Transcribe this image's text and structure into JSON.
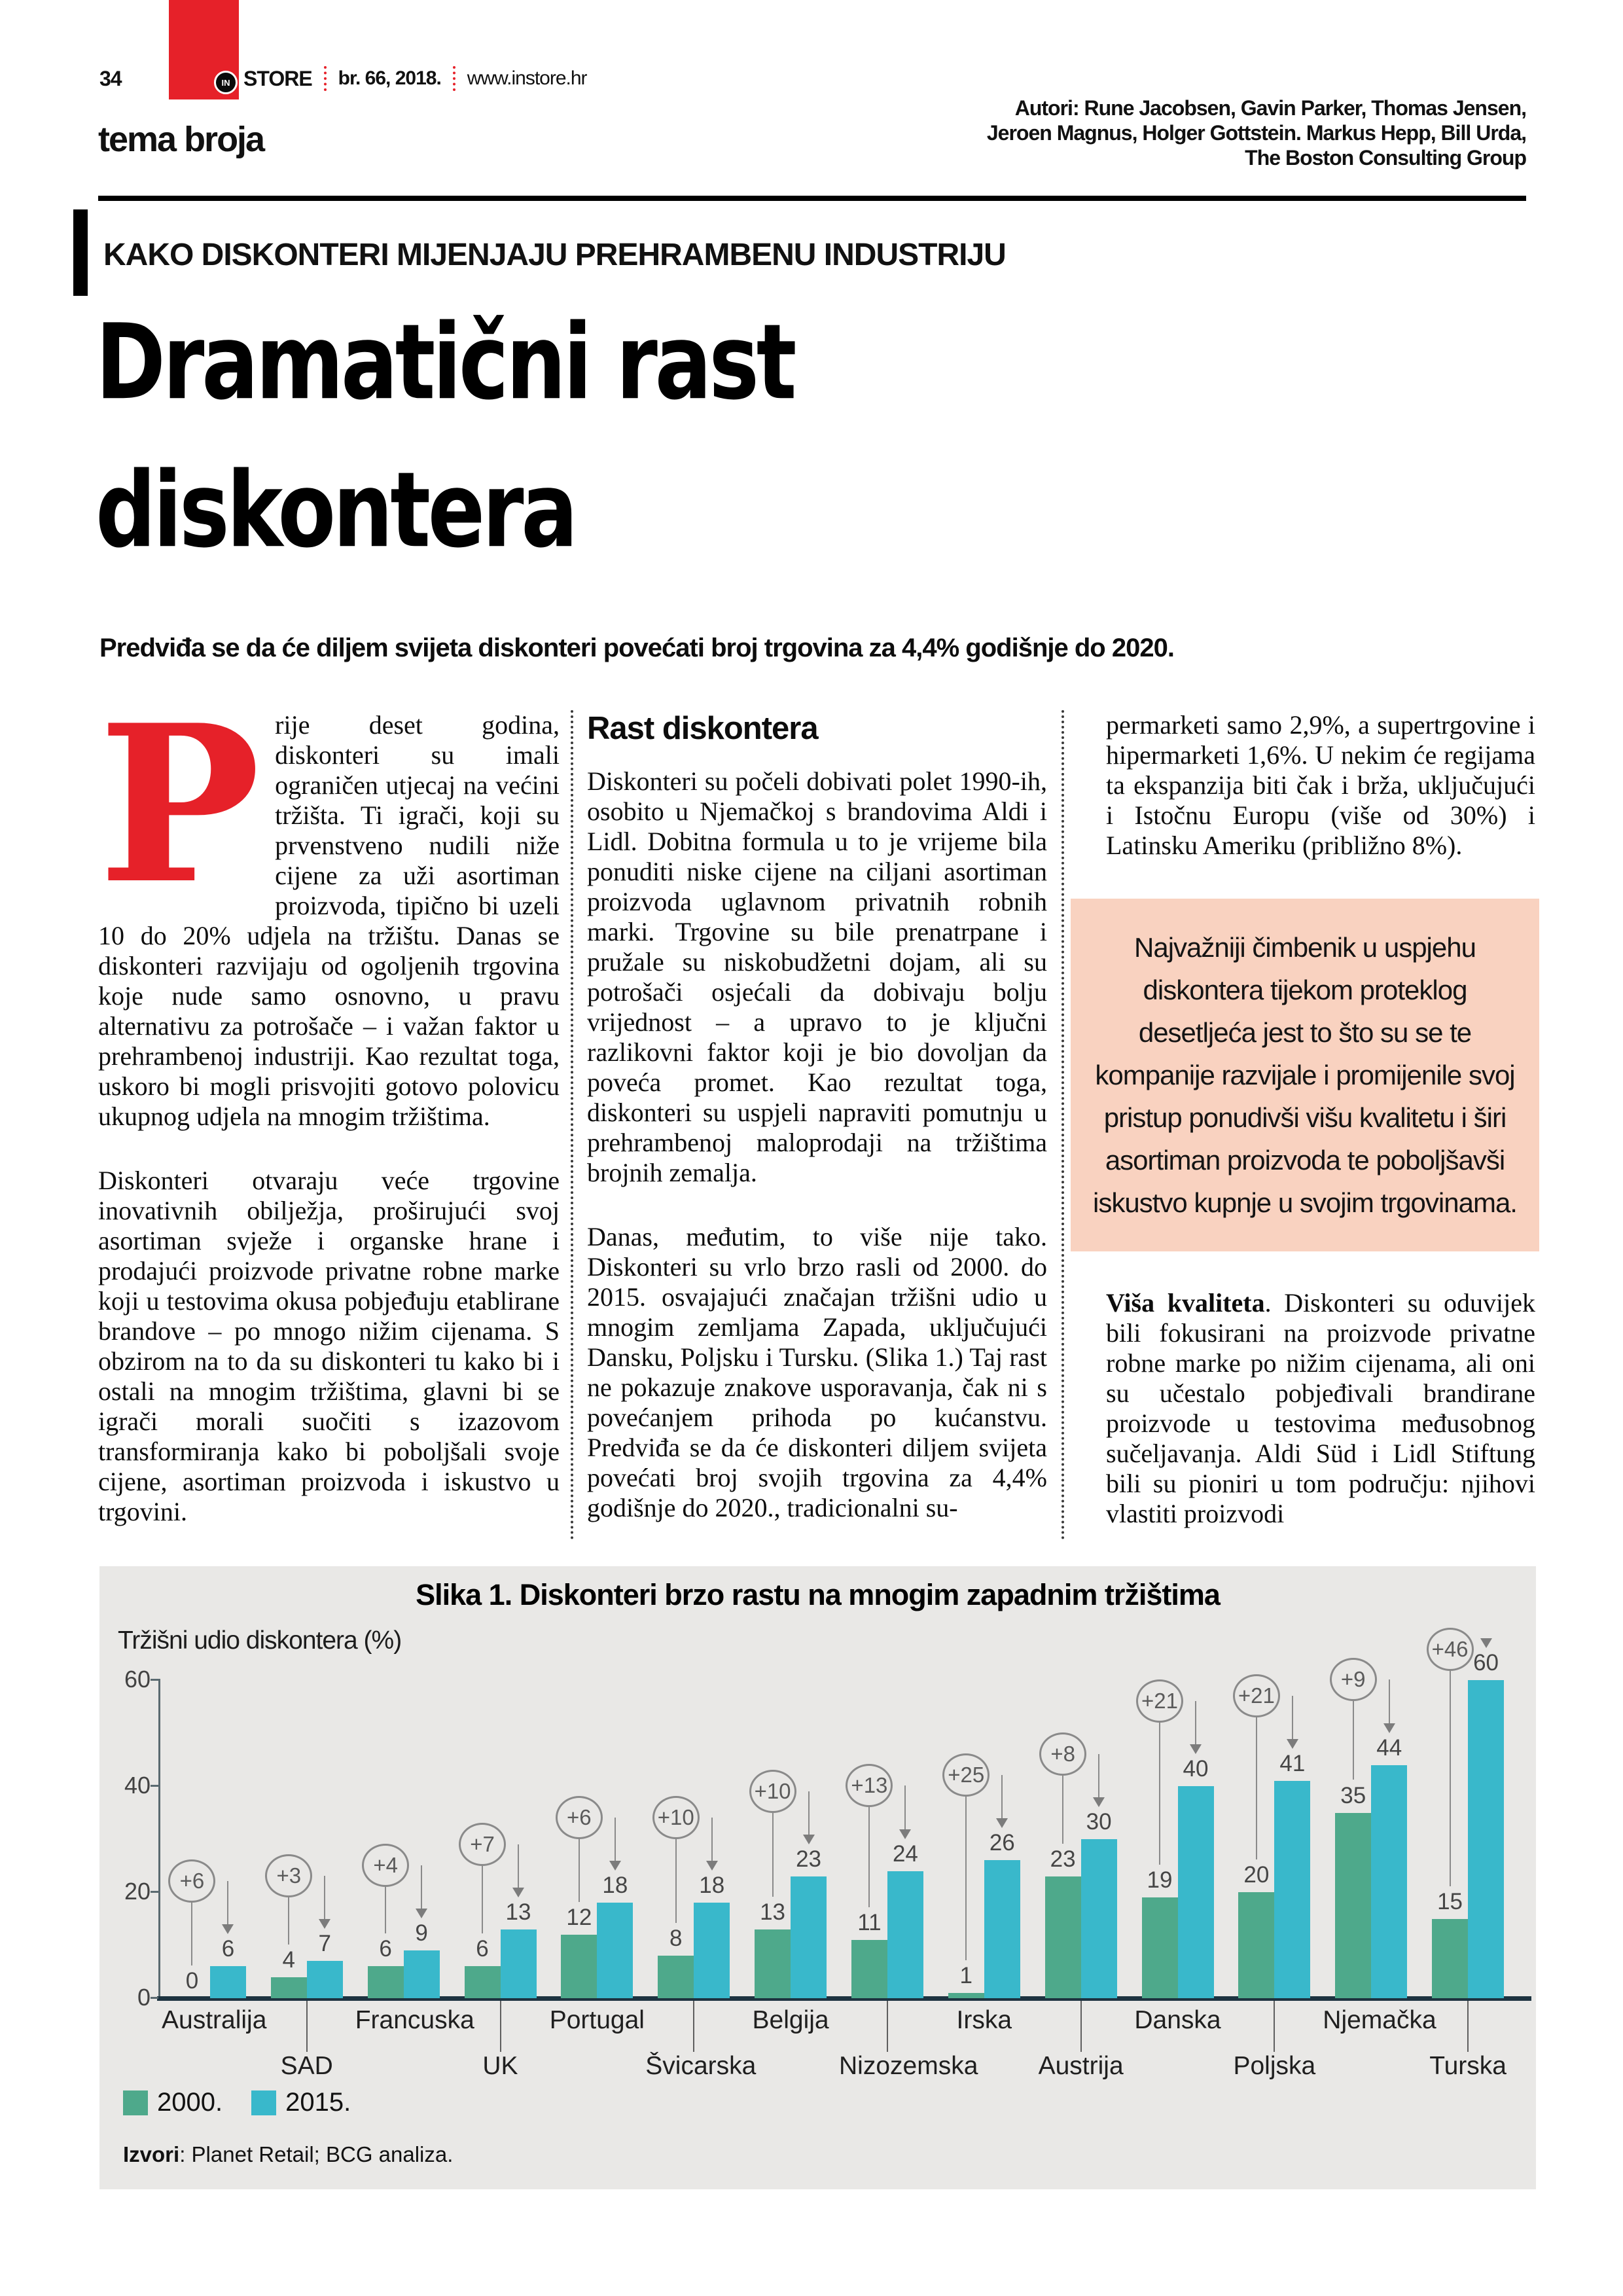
{
  "header": {
    "page_number": "34",
    "logo_in": "IN",
    "logo_store": "STORE",
    "issue": "br. 66, 2018.",
    "website": "www.instore.hr",
    "section": "tema broja",
    "authors_line1": "Autori: Rune Jacobsen, Gavin Parker, Thomas Jensen,",
    "authors_line2": "Jeroen Magnus, Holger Gottstein. Markus Hepp, Bill Urda,",
    "authors_line3": "The Boston Consulting Group"
  },
  "article": {
    "kicker": "KAKO DISKONTERI MIJENJAJU PREHRAMBENU INDUSTRIJU",
    "title_line1": "Dramatični rast",
    "title_line2": "diskontera",
    "lead": "Predviđa se da će diljem svijeta diskonteri povećati broj trgovina za 4,4% godišnje do 2020.",
    "col1": {
      "dropcap": "P",
      "p1": "rije deset godina, diskonteri su imali ograničen utjecaj na većini tržišta. Ti igrači, koji su prvenstveno nudili niže cijene za uži asortiman proizvoda, tipično bi uzeli 10 do 20% udjela na tržištu. Danas se diskonteri razvijaju od ogoljenih trgovina koje nude samo osnovno, u pravu alternativu za potrošače – i važan faktor u prehrambenoj industriji. Kao rezultat toga, uskoro bi mogli prisvojiti gotovo polovicu ukupnog udjela na mnogim tržištima.",
      "p2": "Diskonteri otvaraju veće trgovine inovativnih obilježja, proširujući svoj asortiman svježe i organske hrane i prodajući proizvode privatne robne marke koji u testovima okusa pobjeđuju etablirane brandove – po mnogo nižim cijenama. S obzirom na to da su diskonteri tu kako bi i ostali na mnogim tržištima, glavni bi se igrači morali suočiti s izazovom transformiranja kako bi poboljšali svoje cijene, asortiman proizvoda i iskustvo u trgovini."
    },
    "col2": {
      "heading": "Rast diskontera",
      "p1": "Diskonteri su počeli dobivati polet 1990-ih, osobito u Njemačkoj s brandovima Aldi i Lidl. Dobitna formula u to je vrijeme bila ponuditi niske cijene na ciljani asortiman proizvoda uglavnom privatnih robnih marki. Trgovine su bile prenatrpane i pružale su niskobudžetni dojam, ali su potrošači osjećali da dobivaju bolju vrijednost – a upravo to je ključni razlikovni faktor koji je bio dovoljan da poveća promet. Kao rezultat toga, diskonteri su uspjeli napraviti pomutnju u prehrambenoj maloprodaji na tržištima brojnih zemalja.",
      "p2": "Danas, međutim, to više nije tako. Diskonteri su vrlo brzo rasli od 2000. do 2015. osvajajući značajan tržišni udio u mnogim zemljama Zapada, uključujući Dansku, Poljsku i Tursku. (Slika 1.) Taj rast ne pokazuje znakove usporavanja, čak ni s povećanjem prihoda po kućanstvu. Predviđa se da će diskonteri diljem svijeta povećati broj svojih trgovina za 4,4% godišnje do 2020., tradicionalni su-"
    },
    "col3": {
      "p1": "permarketi samo 2,9%, a supertrgovine i hipermarketi 1,6%. U nekim će regijama ta ekspanzija biti čak i brža, uključujući i Istočnu Europu (više od 30%) i Latinsku Ameriku (približno 8%).",
      "quote": "Najvažniji čimbenik u uspjehu diskontera tijekom proteklog desetljeća jest to što su se te kompanije razvijale i promijenile svoj pristup ponudivši višu kvalitetu i širi asortiman proizvoda te poboljšavši iskustvo kupnje u svojim trgovinama.",
      "p2_lead": "Viša kvaliteta",
      "p2_rest": ". Diskonteri su oduvijek bili fokusirani na proizvode privatne robne marke po nižim cijenama, ali oni su učestalo pobjeđivali brandirane proizvode u testovima međusobnog sučeljavanja. Aldi Süd i Lidl Stiftung bili su pioniri u tom području: njihovi vlastiti proizvodi"
    }
  },
  "colors": {
    "accent_red": "#e62129",
    "quote_box_bg": "#f9d2c0",
    "chart_panel_bg": "#e9e8e6",
    "bar_2000": "#4ea98b",
    "bar_2015": "#39b8cb"
  },
  "chart_data": {
    "type": "bar",
    "title": "Slika 1. Diskonteri brzo rastu na mnogim zapadnim tržištima",
    "ylabel": "Tržišni udio diskontera (%)",
    "xlabel": "",
    "ylim": [
      0,
      60
    ],
    "yticks": [
      0,
      20,
      40,
      60
    ],
    "grid": false,
    "legend_position": "bottom-left",
    "categories": [
      "Australija",
      "SAD",
      "Francuska",
      "UK",
      "Portugal",
      "Švicarska",
      "Belgija",
      "Nizozemska",
      "Irska",
      "Austrija",
      "Danska",
      "Poljska",
      "Njemačka",
      "Turska"
    ],
    "series": [
      {
        "name": "2000.",
        "color": "#4ea98b",
        "values": [
          0,
          4,
          6,
          6,
          12,
          8,
          13,
          11,
          1,
          23,
          19,
          20,
          35,
          15
        ]
      },
      {
        "name": "2015.",
        "color": "#39b8cb",
        "values": [
          6,
          7,
          9,
          13,
          18,
          18,
          23,
          24,
          26,
          30,
          40,
          41,
          44,
          60
        ]
      }
    ],
    "deltas": [
      "+6",
      "+3",
      "+4",
      "+7",
      "+6",
      "+10",
      "+10",
      "+13",
      "+25",
      "+8",
      "+21",
      "+21",
      "+9",
      "+46"
    ],
    "source_label": "Izvori",
    "source_text": ": Planet Retail; BCG analiza."
  }
}
